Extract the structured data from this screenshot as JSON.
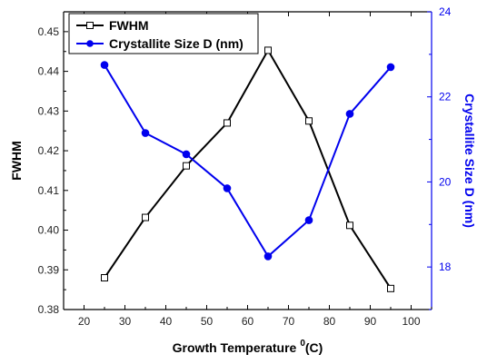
{
  "chart_data": {
    "type": "line",
    "x_axis": {
      "label": "Growth Temperature",
      "superscript": "0",
      "unit_suffix": "(C)",
      "range": [
        15,
        105
      ],
      "ticks": [
        20,
        30,
        40,
        50,
        60,
        70,
        80,
        90,
        100
      ]
    },
    "y_left": {
      "label": "FWHM",
      "range": [
        0.38,
        0.455
      ],
      "ticks": [
        "0.38",
        "0.39",
        "0.40",
        "0.41",
        "0.42",
        "0.43",
        "0.44",
        "0.45"
      ]
    },
    "y_right": {
      "label": "Crystallite Size D (nm)",
      "range": [
        17,
        24
      ],
      "ticks": [
        18,
        20,
        22,
        24
      ]
    },
    "series": [
      {
        "name": "FWHM",
        "axis": "left",
        "color": "#000000",
        "marker": "open-square",
        "x": [
          25,
          35,
          45,
          55,
          65,
          75,
          85,
          95
        ],
        "y": [
          0.388,
          0.4032,
          0.4162,
          0.427,
          0.4453,
          0.4275,
          0.4012,
          0.3853
        ]
      },
      {
        "name": "Crystallite Size D (nm)",
        "axis": "right",
        "color": "#0000ee",
        "marker": "filled-circle",
        "x": [
          25,
          35,
          45,
          55,
          65,
          75,
          85,
          95
        ],
        "y": [
          22.75,
          21.15,
          20.65,
          19.85,
          18.25,
          19.1,
          21.6,
          22.7
        ]
      }
    ],
    "legend_position": "top-left",
    "grid": false
  }
}
